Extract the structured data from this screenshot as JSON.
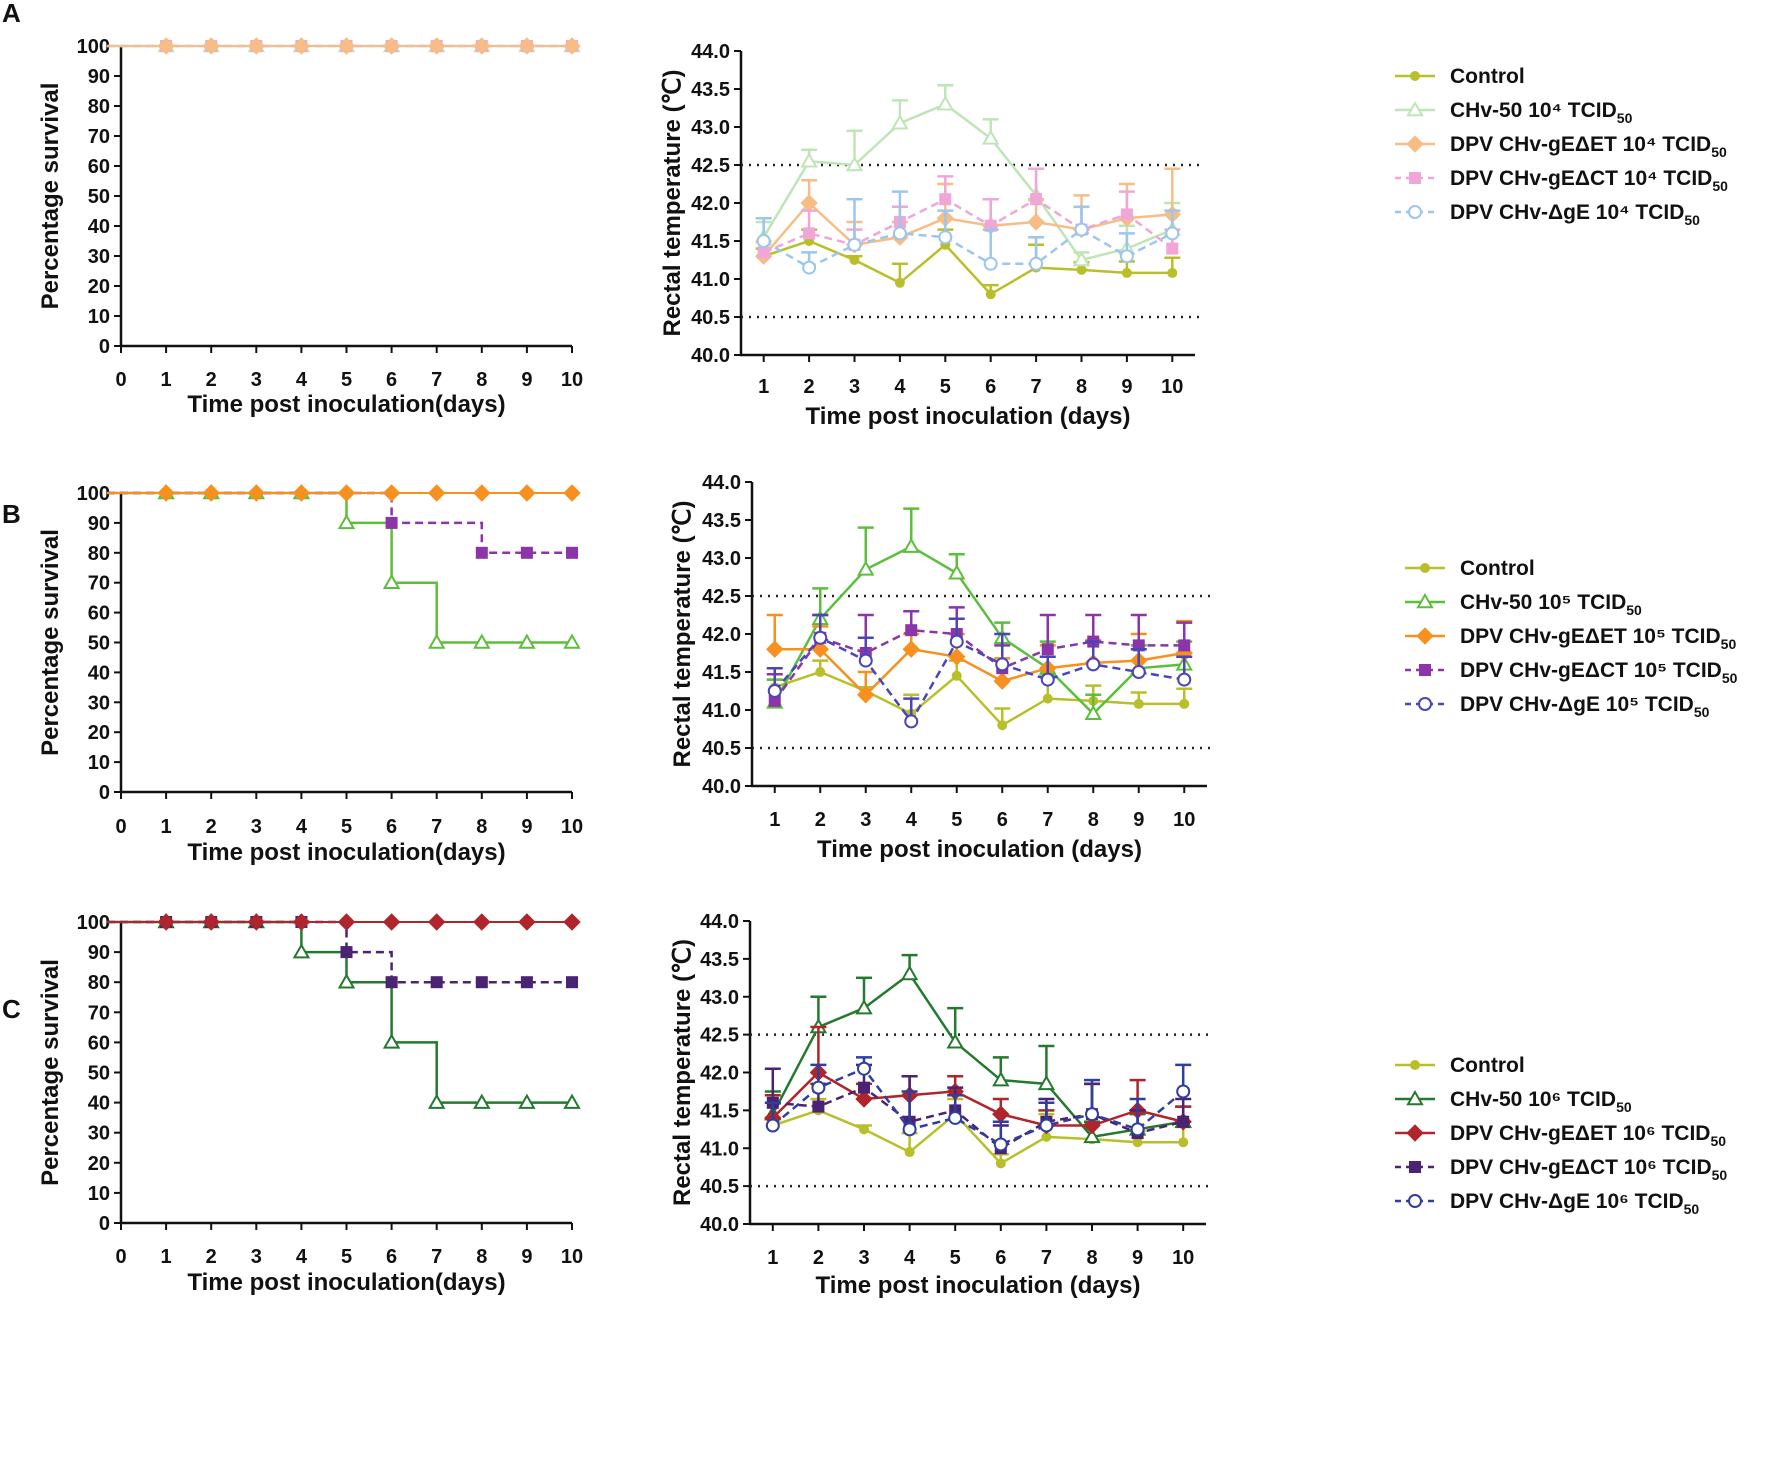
{
  "colors": {
    "control": "#b8bf2a",
    "chv_a": "#bfe5b6",
    "get_a": "#f7bd86",
    "gct_a": "#f0a6d6",
    "dge_a": "#9cc6ec",
    "chv_b": "#5cbf3c",
    "get_b": "#f7901e",
    "gct_b": "#8b35a8",
    "dge_b": "#4a45b8",
    "chv_c": "#237a2e",
    "get_c": "#b0252b",
    "gct_c": "#4a2372",
    "dge_c": "#2e3f9f",
    "axis": "#111111",
    "threshold": "#222222"
  },
  "chart_data": [
    {
      "panel": "A",
      "type": "line",
      "subtype": "survival-step",
      "xlabel": "Time post inoculation(days)",
      "ylabel": "Percentage survival",
      "xlim": [
        0,
        10
      ],
      "ylim": [
        0,
        100
      ],
      "x_ticks": [
        "0",
        "1",
        "2",
        "3",
        "4",
        "5",
        "6",
        "7",
        "8",
        "9",
        "10"
      ],
      "y_ticks": [
        "0",
        "10",
        "20",
        "30",
        "40",
        "50",
        "60",
        "70",
        "80",
        "90",
        "100"
      ],
      "x": [
        1,
        2,
        3,
        4,
        5,
        6,
        7,
        8,
        9,
        10
      ],
      "series": [
        {
          "name": "CHv-50 10⁴ TCID50",
          "marker": "triangle",
          "dashed": false,
          "color_key": "chv_a",
          "values": [
            100,
            100,
            100,
            100,
            100,
            100,
            100,
            100,
            100,
            100
          ]
        },
        {
          "name": "DPV CHv-gEΔCT 10⁴ TCID50",
          "marker": "square",
          "dashed": true,
          "color_key": "gct_a",
          "values": [
            100,
            100,
            100,
            100,
            100,
            100,
            100,
            100,
            100,
            100
          ]
        },
        {
          "name": "DPV CHv-gEΔET 10⁴ TCID50",
          "marker": "diamond",
          "dashed": false,
          "color_key": "get_a",
          "values": [
            100,
            100,
            100,
            100,
            100,
            100,
            100,
            100,
            100,
            100
          ]
        }
      ]
    },
    {
      "panel": "A",
      "type": "line",
      "subtype": "temperature",
      "xlabel": "Time post inoculation (days)",
      "ylabel": "Rectal temperature (℃)",
      "xlim": [
        0.5,
        10.5
      ],
      "ylim": [
        40.0,
        44.0
      ],
      "x_ticks": [
        "1",
        "2",
        "3",
        "4",
        "5",
        "6",
        "7",
        "8",
        "9",
        "10"
      ],
      "y_ticks": [
        "40.0",
        "40.5",
        "41.0",
        "41.5",
        "42.0",
        "42.5",
        "43.0",
        "43.5",
        "44.0"
      ],
      "thresholds": [
        40.5,
        42.5
      ],
      "x": [
        1,
        2,
        3,
        4,
        5,
        6,
        7,
        8,
        9,
        10
      ],
      "series": [
        {
          "name": "Control",
          "marker": "circle-filled",
          "dashed": false,
          "color_key": "control",
          "values": [
            41.3,
            41.5,
            41.25,
            40.95,
            41.45,
            40.8,
            41.15,
            41.12,
            41.08,
            41.08
          ],
          "errors": [
            0.1,
            0.15,
            0.05,
            0.25,
            0.2,
            0.12,
            0.3,
            0.1,
            0.15,
            0.2
          ]
        },
        {
          "name": "CHv-50 10⁴ TCID50",
          "marker": "triangle",
          "dashed": false,
          "color_key": "chv_a",
          "values": [
            41.55,
            42.55,
            42.5,
            43.05,
            43.3,
            42.85,
            42.1,
            41.25,
            41.4,
            41.65
          ],
          "errors": [
            0.2,
            0.15,
            0.45,
            0.3,
            0.25,
            0.25,
            0.35,
            0.1,
            0.3,
            0.35
          ]
        },
        {
          "name": "DPV CHv-gEΔET 10⁴ TCID50",
          "marker": "diamond",
          "dashed": false,
          "color_key": "get_a",
          "values": [
            41.3,
            42.0,
            41.45,
            41.55,
            41.8,
            41.7,
            41.75,
            41.65,
            41.8,
            41.85
          ],
          "errors": [
            0.2,
            0.3,
            0.3,
            0.2,
            0.45,
            0.35,
            0.3,
            0.45,
            0.45,
            0.6
          ]
        },
        {
          "name": "DPV CHv-gEΔCT 10⁴ TCID50",
          "marker": "square",
          "dashed": true,
          "color_key": "gct_a",
          "values": [
            41.35,
            41.6,
            41.45,
            41.75,
            42.05,
            41.7,
            42.05,
            41.65,
            41.85,
            41.4
          ],
          "errors": [
            0.45,
            0.3,
            0.2,
            0.2,
            0.3,
            0.35,
            0.4,
            0.3,
            0.3,
            0.25
          ]
        },
        {
          "name": "DPV CHv-ΔgE 10⁴ TCID50",
          "marker": "circle-open",
          "dashed": true,
          "color_key": "dge_a",
          "values": [
            41.5,
            41.15,
            41.45,
            41.6,
            41.55,
            41.2,
            41.2,
            41.65,
            41.3,
            41.6
          ],
          "errors": [
            0.3,
            0.2,
            0.6,
            0.55,
            0.35,
            0.45,
            0.35,
            0.3,
            0.3,
            0.3
          ]
        }
      ],
      "legend": [
        "Control",
        "CHv-50 10⁴ TCID50",
        "DPV CHv-gEΔET 10⁴ TCID50",
        "DPV CHv-gEΔCT 10⁴ TCID50",
        "DPV CHv-ΔgE 10⁴ TCID50"
      ]
    },
    {
      "panel": "B",
      "type": "line",
      "subtype": "survival-step",
      "xlabel": "Time post inoculation(days)",
      "ylabel": "Percentage survival",
      "xlim": [
        0,
        10
      ],
      "ylim": [
        0,
        100
      ],
      "x_ticks": [
        "0",
        "1",
        "2",
        "3",
        "4",
        "5",
        "6",
        "7",
        "8",
        "9",
        "10"
      ],
      "y_ticks": [
        "0",
        "10",
        "20",
        "30",
        "40",
        "50",
        "60",
        "70",
        "80",
        "90",
        "100"
      ],
      "x": [
        1,
        2,
        3,
        4,
        5,
        6,
        7,
        8,
        9,
        10
      ],
      "series": [
        {
          "name": "CHv-50 10⁵ TCID50",
          "marker": "triangle",
          "dashed": false,
          "color_key": "chv_b",
          "values": [
            100,
            100,
            100,
            100,
            90,
            70,
            50,
            50,
            50,
            50
          ]
        },
        {
          "name": "DPV CHv-gEΔCT 10⁵ TCID50",
          "marker": "square",
          "dashed": true,
          "color_key": "gct_b",
          "values": [
            null,
            null,
            null,
            null,
            null,
            90,
            null,
            80,
            80,
            80
          ],
          "steps": [
            100,
            100,
            100,
            100,
            100,
            90,
            90,
            80,
            80,
            80
          ]
        },
        {
          "name": "DPV CHv-gEΔET 10⁵ TCID50",
          "marker": "diamond",
          "dashed": false,
          "color_key": "get_b",
          "values": [
            100,
            100,
            100,
            100,
            100,
            100,
            100,
            100,
            100,
            100
          ]
        }
      ]
    },
    {
      "panel": "B",
      "type": "line",
      "subtype": "temperature",
      "xlabel": "Time post inoculation (days)",
      "ylabel": "Rectal temperature (℃)",
      "xlim": [
        0.5,
        10.5
      ],
      "ylim": [
        40.0,
        44.0
      ],
      "x_ticks": [
        "1",
        "2",
        "3",
        "4",
        "5",
        "6",
        "7",
        "8",
        "9",
        "10"
      ],
      "y_ticks": [
        "40.0",
        "40.5",
        "41.0",
        "41.5",
        "42.0",
        "42.5",
        "43.0",
        "43.5",
        "44.0"
      ],
      "thresholds": [
        40.5,
        42.5
      ],
      "x": [
        1,
        2,
        3,
        4,
        5,
        6,
        7,
        8,
        9,
        10
      ],
      "series": [
        {
          "name": "Control",
          "marker": "circle-filled",
          "dashed": false,
          "color_key": "control",
          "values": [
            41.3,
            41.5,
            41.25,
            40.95,
            41.45,
            40.8,
            41.15,
            41.12,
            41.08,
            41.08
          ],
          "errors": [
            0.1,
            0.15,
            0.05,
            0.25,
            0.2,
            0.22,
            0.3,
            0.2,
            0.15,
            0.2
          ]
        },
        {
          "name": "CHv-50 10⁵ TCID50",
          "marker": "triangle",
          "dashed": false,
          "color_key": "chv_b",
          "values": [
            41.1,
            42.2,
            42.85,
            43.15,
            42.8,
            41.95,
            41.55,
            40.95,
            41.55,
            41.6
          ],
          "errors": [
            0.3,
            0.4,
            0.55,
            0.5,
            0.25,
            0.2,
            0.35,
            0.25,
            0.3,
            0.3
          ]
        },
        {
          "name": "DPV CHv-gEΔET 10⁵ TCID50",
          "marker": "diamond",
          "dashed": false,
          "color_key": "get_b",
          "values": [
            41.8,
            41.8,
            41.2,
            41.8,
            41.7,
            41.38,
            41.55,
            41.62,
            41.65,
            41.75
          ],
          "errors": [
            0.45,
            0.3,
            0.3,
            0.2,
            0.3,
            0.3,
            0.3,
            0.3,
            0.35,
            0.42
          ]
        },
        {
          "name": "DPV CHv-gEΔCT 10⁵ TCID50",
          "marker": "square",
          "dashed": true,
          "color_key": "gct_b",
          "values": [
            41.12,
            41.95,
            41.75,
            42.05,
            42.0,
            41.55,
            41.8,
            41.9,
            41.85,
            41.85
          ],
          "errors": [
            0.35,
            0.3,
            0.5,
            0.25,
            0.35,
            0.3,
            0.45,
            0.35,
            0.4,
            0.3
          ]
        },
        {
          "name": "DPV CHv-ΔgE 10⁵ TCID50",
          "marker": "circle-open",
          "dashed": true,
          "color_key": "dge_b",
          "values": [
            41.25,
            41.95,
            41.65,
            40.85,
            41.9,
            41.6,
            41.4,
            41.6,
            41.5,
            41.4
          ],
          "errors": [
            0.3,
            0.3,
            0.3,
            0.3,
            0.3,
            0.4,
            0.3,
            0.3,
            0.3,
            0.3
          ]
        }
      ],
      "legend": [
        "Control",
        "CHv-50 10⁵ TCID50",
        "DPV CHv-gEΔET 10⁵ TCID50",
        "DPV CHv-gEΔCT 10⁵ TCID50",
        "DPV CHv-ΔgE 10⁵ TCID50"
      ]
    },
    {
      "panel": "C",
      "type": "line",
      "subtype": "survival-step",
      "xlabel": "Time post inoculation(days)",
      "ylabel": "Percentage survival",
      "xlim": [
        0,
        10
      ],
      "ylim": [
        0,
        100
      ],
      "x_ticks": [
        "0",
        "1",
        "2",
        "3",
        "4",
        "5",
        "6",
        "7",
        "8",
        "9",
        "10"
      ],
      "y_ticks": [
        "0",
        "10",
        "20",
        "30",
        "40",
        "50",
        "60",
        "70",
        "80",
        "90",
        "100"
      ],
      "x": [
        1,
        2,
        3,
        4,
        5,
        6,
        7,
        8,
        9,
        10
      ],
      "series": [
        {
          "name": "CHv-50 10⁶ TCID50",
          "marker": "triangle",
          "dashed": false,
          "color_key": "chv_c",
          "values": [
            100,
            100,
            100,
            90,
            80,
            60,
            40,
            40,
            40,
            40
          ]
        },
        {
          "name": "DPV CHv-gEΔCT 10⁶ TCID50",
          "marker": "square",
          "dashed": true,
          "color_key": "gct_c",
          "values": [
            100,
            100,
            100,
            100,
            90,
            80,
            80,
            80,
            80,
            80
          ]
        },
        {
          "name": "DPV CHv-gEΔET 10⁶ TCID50",
          "marker": "diamond",
          "dashed": false,
          "color_key": "get_c",
          "values": [
            100,
            100,
            100,
            100,
            100,
            100,
            100,
            100,
            100,
            100
          ]
        }
      ]
    },
    {
      "panel": "C",
      "type": "line",
      "subtype": "temperature",
      "xlabel": "Time post inoculation (days)",
      "ylabel": "Rectal temperature (℃)",
      "xlim": [
        0.5,
        10.5
      ],
      "ylim": [
        40.0,
        44.0
      ],
      "x_ticks": [
        "1",
        "2",
        "3",
        "4",
        "5",
        "6",
        "7",
        "8",
        "9",
        "10"
      ],
      "y_ticks": [
        "40.0",
        "40.5",
        "41.0",
        "41.5",
        "42.0",
        "42.5",
        "43.0",
        "43.5",
        "44.0"
      ],
      "thresholds": [
        40.5,
        42.5
      ],
      "x": [
        1,
        2,
        3,
        4,
        5,
        6,
        7,
        8,
        9,
        10
      ],
      "series": [
        {
          "name": "Control",
          "marker": "circle-filled",
          "dashed": false,
          "color_key": "control",
          "values": [
            41.3,
            41.5,
            41.25,
            40.95,
            41.45,
            40.8,
            41.15,
            41.12,
            41.08,
            41.08
          ],
          "errors": [
            0.1,
            0.15,
            0.05,
            0.25,
            0.2,
            0.12,
            0.3,
            0.2,
            0.15,
            0.2
          ]
        },
        {
          "name": "CHv-50 10⁶ TCID50",
          "marker": "triangle",
          "dashed": false,
          "color_key": "chv_c",
          "values": [
            41.45,
            42.6,
            42.85,
            43.3,
            42.4,
            41.9,
            41.85,
            41.15,
            41.25,
            41.35
          ],
          "errors": [
            0.3,
            0.4,
            0.4,
            0.25,
            0.45,
            0.3,
            0.5,
            0.2,
            0.2,
            0.2
          ]
        },
        {
          "name": "DPV CHv-gEΔET 10⁶ TCID50",
          "marker": "diamond",
          "dashed": false,
          "color_key": "get_c",
          "values": [
            41.4,
            42.0,
            41.65,
            41.7,
            41.75,
            41.45,
            41.3,
            41.3,
            41.5,
            41.35
          ],
          "errors": [
            0.3,
            0.6,
            0.2,
            0.25,
            0.2,
            0.2,
            0.2,
            0.55,
            0.4,
            0.2
          ]
        },
        {
          "name": "DPV CHv-gEΔCT 10⁶ TCID50",
          "marker": "square",
          "dashed": true,
          "color_key": "gct_c",
          "values": [
            41.6,
            41.55,
            41.8,
            41.35,
            41.5,
            41.0,
            41.35,
            41.45,
            41.2,
            41.35
          ],
          "errors": [
            0.45,
            0.3,
            0.3,
            0.6,
            0.3,
            0.3,
            0.3,
            0.4,
            0.3,
            0.3
          ]
        },
        {
          "name": "DPV CHv-ΔgE 10⁶ TCID50",
          "marker": "circle-open",
          "dashed": true,
          "color_key": "dge_c",
          "values": [
            41.3,
            41.8,
            42.05,
            41.25,
            41.4,
            41.05,
            41.3,
            41.45,
            41.25,
            41.75
          ],
          "errors": [
            0.3,
            0.3,
            0.15,
            0.5,
            0.3,
            0.3,
            0.3,
            0.45,
            0.4,
            0.35
          ]
        }
      ],
      "legend": [
        "Control",
        "CHv-50 10⁶ TCID50",
        "DPV CHv-gEΔET 10⁶ TCID50",
        "DPV CHv-gEΔCT 10⁶ TCID50",
        "DPV CHv-ΔgE 10⁶ TCID50"
      ]
    }
  ],
  "panels": [
    "A",
    "B",
    "C"
  ]
}
